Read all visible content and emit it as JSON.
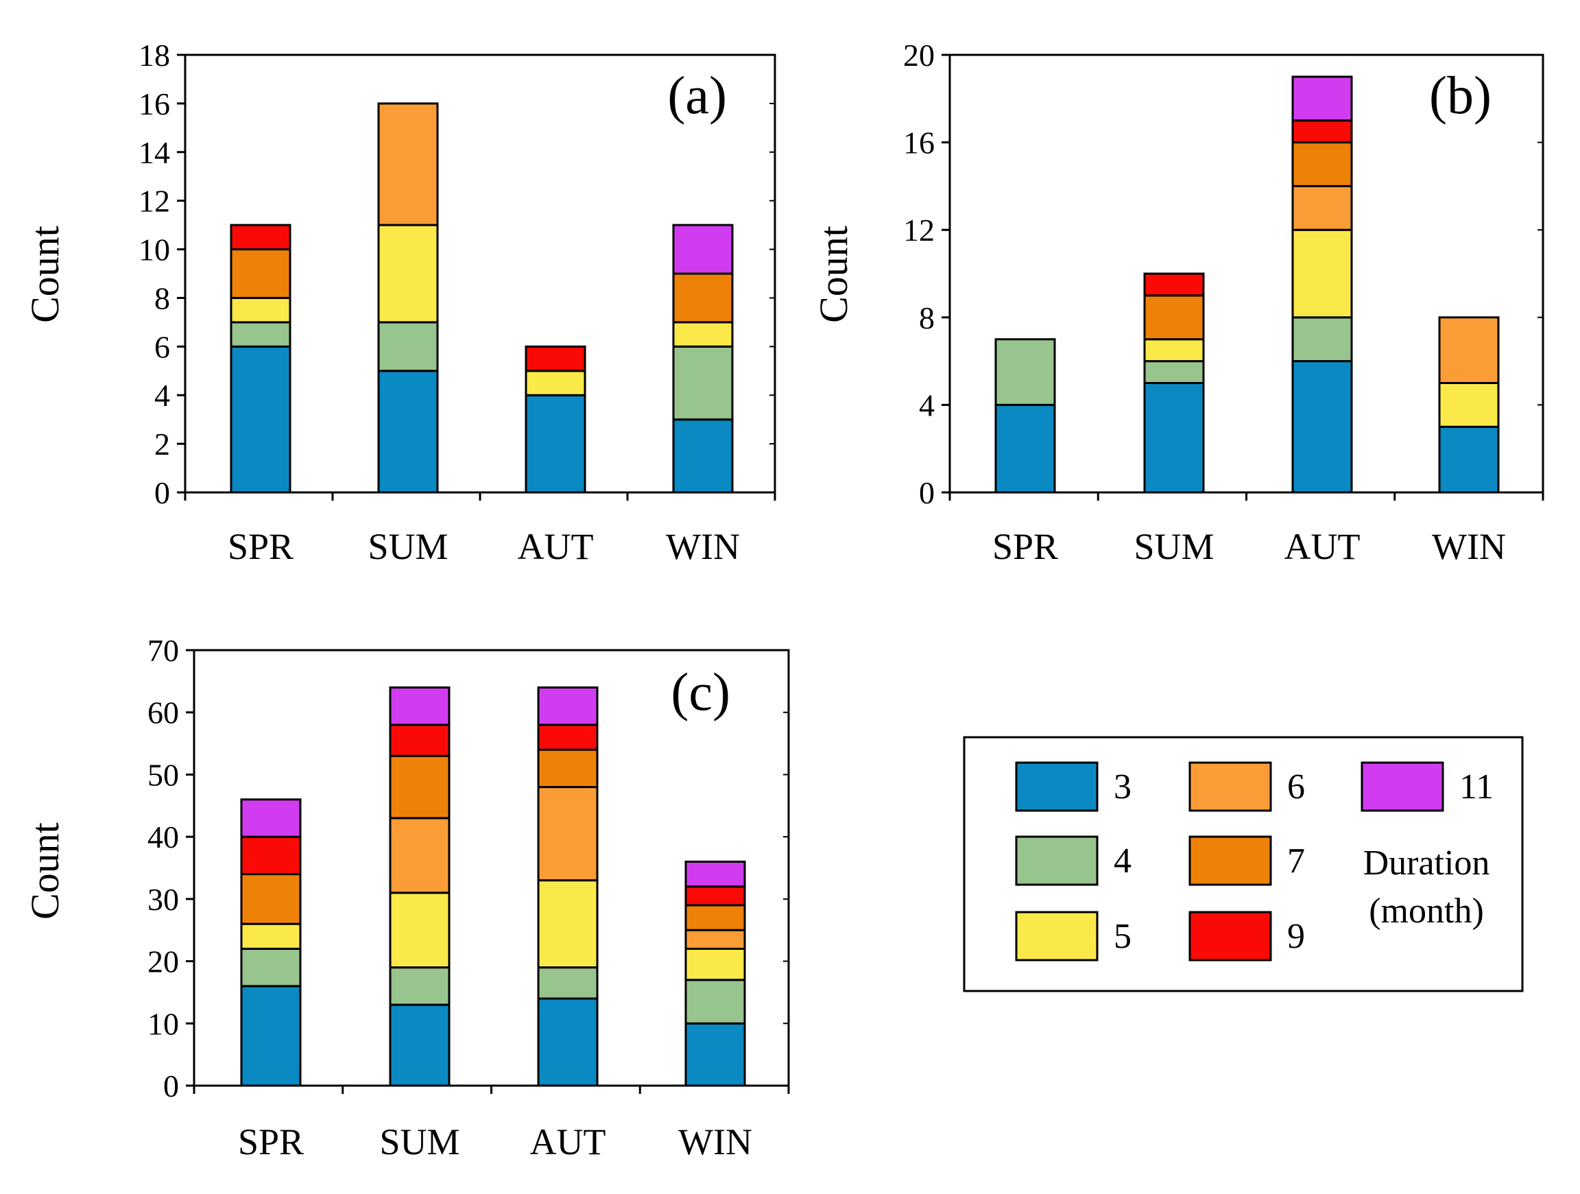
{
  "colors": {
    "3": "#0a89c2",
    "4": "#98c48e",
    "5": "#fbe94a",
    "6": "#fb9d36",
    "7": "#ee8208",
    "9": "#fa0a06",
    "11": "#d23cf0"
  },
  "chart_data": [
    {
      "type": "bar",
      "stacked": true,
      "panel_label": "(a)",
      "ylabel": "Count",
      "ylim": [
        0,
        18
      ],
      "yticks": [
        0,
        2,
        4,
        6,
        8,
        10,
        12,
        14,
        16,
        18
      ],
      "categories": [
        "SPR",
        "SUM",
        "AUT",
        "WIN"
      ],
      "series": [
        {
          "name": "3",
          "values": [
            6,
            5,
            4,
            3
          ]
        },
        {
          "name": "4",
          "values": [
            1,
            2,
            0,
            3
          ]
        },
        {
          "name": "5",
          "values": [
            1,
            4,
            1,
            1
          ]
        },
        {
          "name": "6",
          "values": [
            0,
            5,
            0,
            0
          ]
        },
        {
          "name": "7",
          "values": [
            2,
            0,
            0,
            2
          ]
        },
        {
          "name": "9",
          "values": [
            1,
            0,
            1,
            0
          ]
        },
        {
          "name": "11",
          "values": [
            0,
            0,
            0,
            2
          ]
        }
      ]
    },
    {
      "type": "bar",
      "stacked": true,
      "panel_label": "(b)",
      "ylabel": "Count",
      "ylim": [
        0,
        20
      ],
      "yticks": [
        0,
        4,
        8,
        12,
        16,
        20
      ],
      "categories": [
        "SPR",
        "SUM",
        "AUT",
        "WIN"
      ],
      "series": [
        {
          "name": "3",
          "values": [
            4,
            5,
            6,
            3
          ]
        },
        {
          "name": "4",
          "values": [
            3,
            1,
            2,
            0
          ]
        },
        {
          "name": "5",
          "values": [
            0,
            1,
            4,
            2
          ]
        },
        {
          "name": "6",
          "values": [
            0,
            0,
            2,
            3
          ]
        },
        {
          "name": "7",
          "values": [
            0,
            2,
            2,
            0
          ]
        },
        {
          "name": "9",
          "values": [
            0,
            1,
            1,
            0
          ]
        },
        {
          "name": "11",
          "values": [
            0,
            0,
            2,
            0
          ]
        }
      ]
    },
    {
      "type": "bar",
      "stacked": true,
      "panel_label": "(c)",
      "ylabel": "Count",
      "ylim": [
        0,
        70
      ],
      "yticks": [
        0,
        10,
        20,
        30,
        40,
        50,
        60,
        70
      ],
      "categories": [
        "SPR",
        "SUM",
        "AUT",
        "WIN"
      ],
      "series": [
        {
          "name": "3",
          "values": [
            16,
            13,
            14,
            10
          ]
        },
        {
          "name": "4",
          "values": [
            6,
            6,
            5,
            7
          ]
        },
        {
          "name": "5",
          "values": [
            4,
            12,
            14,
            5
          ]
        },
        {
          "name": "6",
          "values": [
            0,
            12,
            15,
            3
          ]
        },
        {
          "name": "7",
          "values": [
            8,
            10,
            6,
            4
          ]
        },
        {
          "name": "9",
          "values": [
            6,
            5,
            4,
            3
          ]
        },
        {
          "name": "11",
          "values": [
            6,
            6,
            6,
            4
          ]
        }
      ]
    }
  ],
  "legend": {
    "entries": [
      "3",
      "4",
      "5",
      "6",
      "7",
      "9",
      "11"
    ],
    "title_line1": "Duration",
    "title_line2": "(month)"
  }
}
